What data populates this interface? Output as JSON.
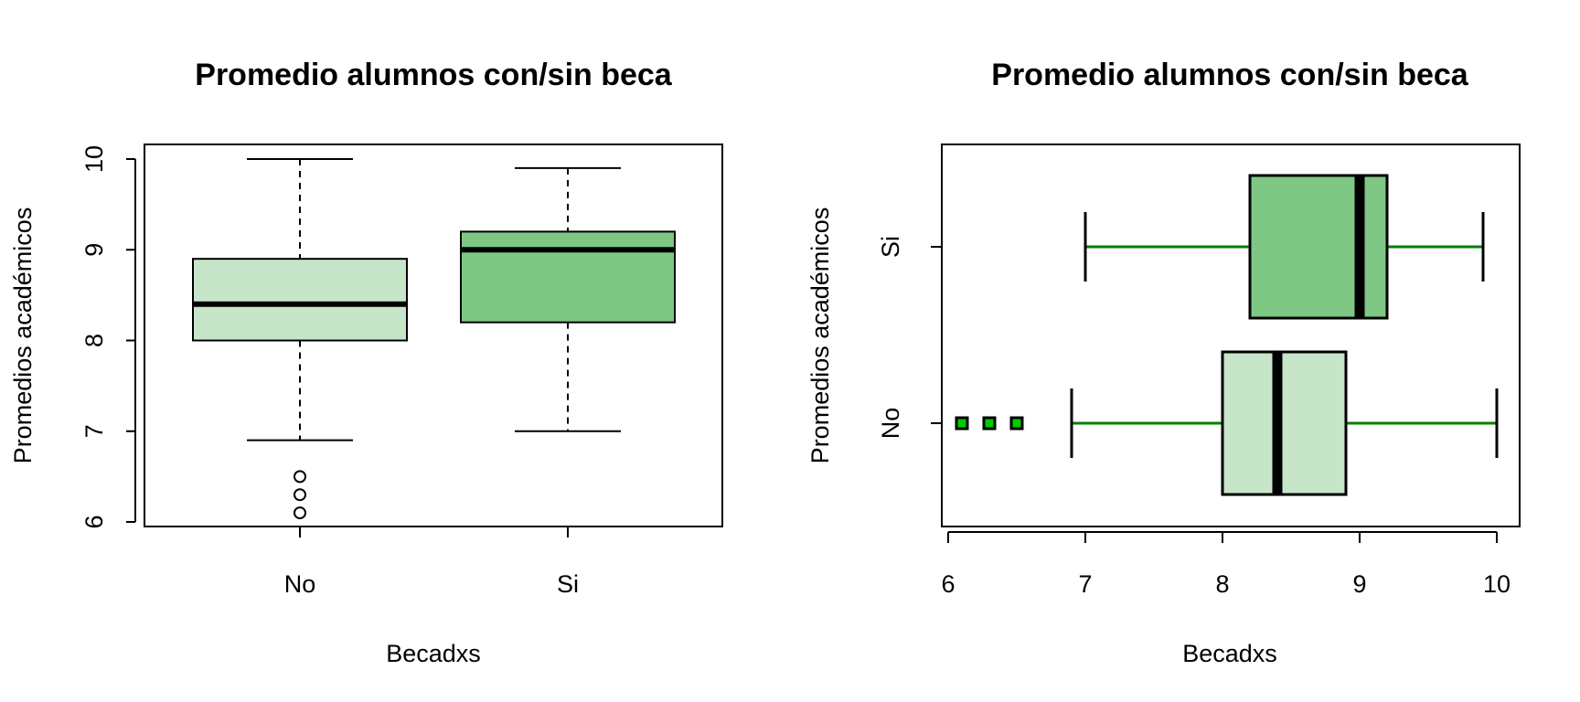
{
  "chart_data": [
    {
      "type": "boxplot",
      "orientation": "vertical",
      "title": "Promedio alumnos con/sin beca",
      "xlabel": "Becadxs",
      "ylabel": "Promedios académicos",
      "ylim": [
        6,
        10
      ],
      "yticks": [
        "6",
        "7",
        "8",
        "9",
        "10"
      ],
      "grid": false,
      "whisker_style": "dashed",
      "outlier_style": "open-circle",
      "categories": [
        "No",
        "Si"
      ],
      "boxes": [
        {
          "name": "No",
          "whislo": 6.9,
          "q1": 8.0,
          "med": 8.4,
          "q3": 8.9,
          "whishi": 10.0,
          "outliers": [
            6.1,
            6.3,
            6.5
          ],
          "fill": "#C7E5C9"
        },
        {
          "name": "Si",
          "whislo": 7.0,
          "q1": 8.2,
          "med": 9.0,
          "q3": 9.2,
          "whishi": 9.9,
          "outliers": [],
          "fill": "#7FC784"
        }
      ],
      "line_color": "#000000"
    },
    {
      "type": "boxplot",
      "orientation": "horizontal",
      "title": "Promedio alumnos con/sin beca",
      "xlabel": "Becadxs",
      "ylabel": "Promedios académicos",
      "xlim": [
        6,
        10
      ],
      "xticks": [
        "6",
        "7",
        "8",
        "9",
        "10"
      ],
      "grid": false,
      "whisker_style": "solid",
      "outlier_style": "filled-square",
      "categories": [
        "No",
        "Si"
      ],
      "boxes": [
        {
          "name": "No",
          "whislo": 6.9,
          "q1": 8.0,
          "med": 8.4,
          "q3": 8.9,
          "whishi": 10.0,
          "outliers": [
            6.1,
            6.3,
            6.5
          ],
          "fill": "#C7E5C9"
        },
        {
          "name": "Si",
          "whislo": 7.0,
          "q1": 8.2,
          "med": 9.0,
          "q3": 9.2,
          "whishi": 9.9,
          "outliers": [],
          "fill": "#7FC784"
        }
      ],
      "whisker_color": "#008000",
      "outlier_color": "#00CC00",
      "line_color": "#000000"
    }
  ]
}
